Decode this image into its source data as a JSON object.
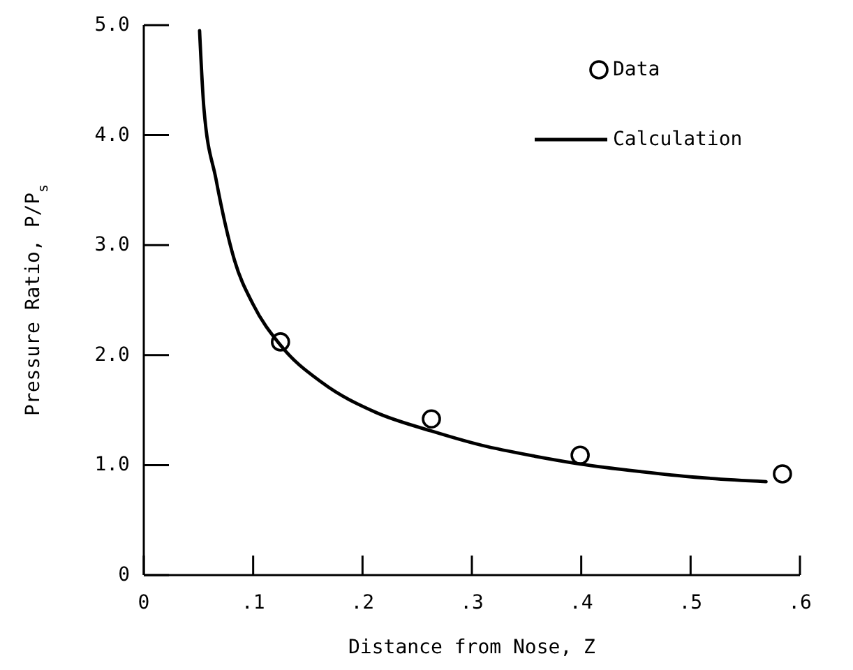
{
  "chart_data": {
    "type": "scatter",
    "xlabel": "Distance from Nose, Z",
    "ylabel": "Pressure Ratio, P/P$_{s}$",
    "xlim": [
      0,
      0.6
    ],
    "ylim": [
      0,
      5
    ],
    "xticks": [
      {
        "value": 0,
        "label": "0"
      },
      {
        "value": 0.1,
        "label": ".1"
      },
      {
        "value": 0.2,
        "label": ".2"
      },
      {
        "value": 0.3,
        "label": ".3"
      },
      {
        "value": 0.4,
        "label": ".4"
      },
      {
        "value": 0.5,
        "label": ".5"
      },
      {
        "value": 0.6,
        "label": ".6"
      }
    ],
    "yticks": [
      0,
      {
        "value": 1,
        "label": "1.0"
      },
      {
        "value": 2,
        "label": "2.0"
      },
      {
        "value": 3,
        "label": "3.0"
      },
      {
        "value": 4,
        "label": "4.0"
      },
      {
        "value": 5,
        "label": "5.0"
      }
    ],
    "grid": false,
    "legend": "top right",
    "series": [
      {
        "name": "Data",
        "marker": "circle",
        "color": "#000000",
        "x": [
          0.125,
          0.263,
          0.399,
          0.584
        ],
        "values": [
          2.12,
          1.42,
          1.09,
          0.92
        ]
      },
      {
        "name": "Calculation",
        "type": "line",
        "marker": "none",
        "line_style": "solid",
        "color": "#000000",
        "x": [
          0.051,
          0.055,
          0.066,
          0.083,
          0.1,
          0.125,
          0.163,
          0.212,
          0.263,
          0.309,
          0.358,
          0.399,
          0.455,
          0.504,
          0.569
        ],
        "values": [
          4.95,
          4.24,
          3.6,
          2.86,
          2.46,
          2.09,
          1.75,
          1.48,
          1.31,
          1.18,
          1.08,
          1.01,
          0.94,
          0.89,
          0.85
        ]
      }
    ]
  }
}
